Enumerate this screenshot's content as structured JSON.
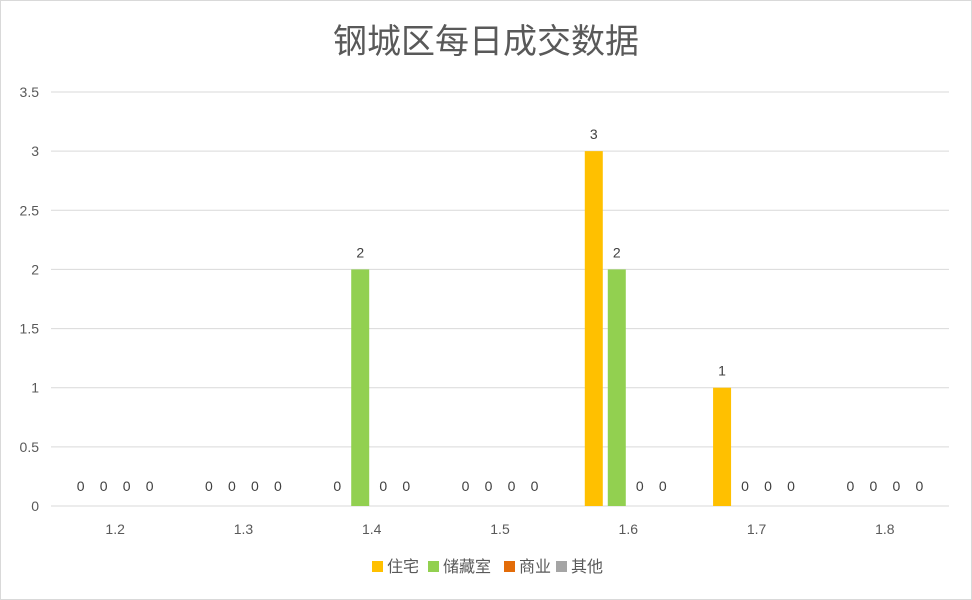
{
  "chart_data": {
    "type": "bar",
    "title": "钢城区每日成交数据",
    "xlabel": "",
    "ylabel": "",
    "categories": [
      "1.2",
      "1.3",
      "1.4",
      "1.5",
      "1.6",
      "1.7",
      "1.8"
    ],
    "series": [
      {
        "name": "住宅",
        "color": "#FFC000",
        "values": [
          0,
          0,
          0,
          0,
          3,
          1,
          0
        ]
      },
      {
        "name": "储藏室",
        "color": "#92D050",
        "values": [
          0,
          0,
          2,
          0,
          2,
          0,
          0
        ]
      },
      {
        "name": "商业",
        "color": "#E36C09",
        "values": [
          0,
          0,
          0,
          0,
          0,
          0,
          0
        ]
      },
      {
        "name": "其他",
        "color": "#A5A5A5",
        "values": [
          0,
          0,
          0,
          0,
          0,
          0,
          0
        ]
      }
    ],
    "ylim": [
      0,
      3.5
    ],
    "yticks": [
      "0",
      "0.5",
      "1",
      "1.5",
      "2",
      "2.5",
      "3",
      "3.5"
    ],
    "grid": true,
    "data_labels": true,
    "legend": "bottom"
  }
}
